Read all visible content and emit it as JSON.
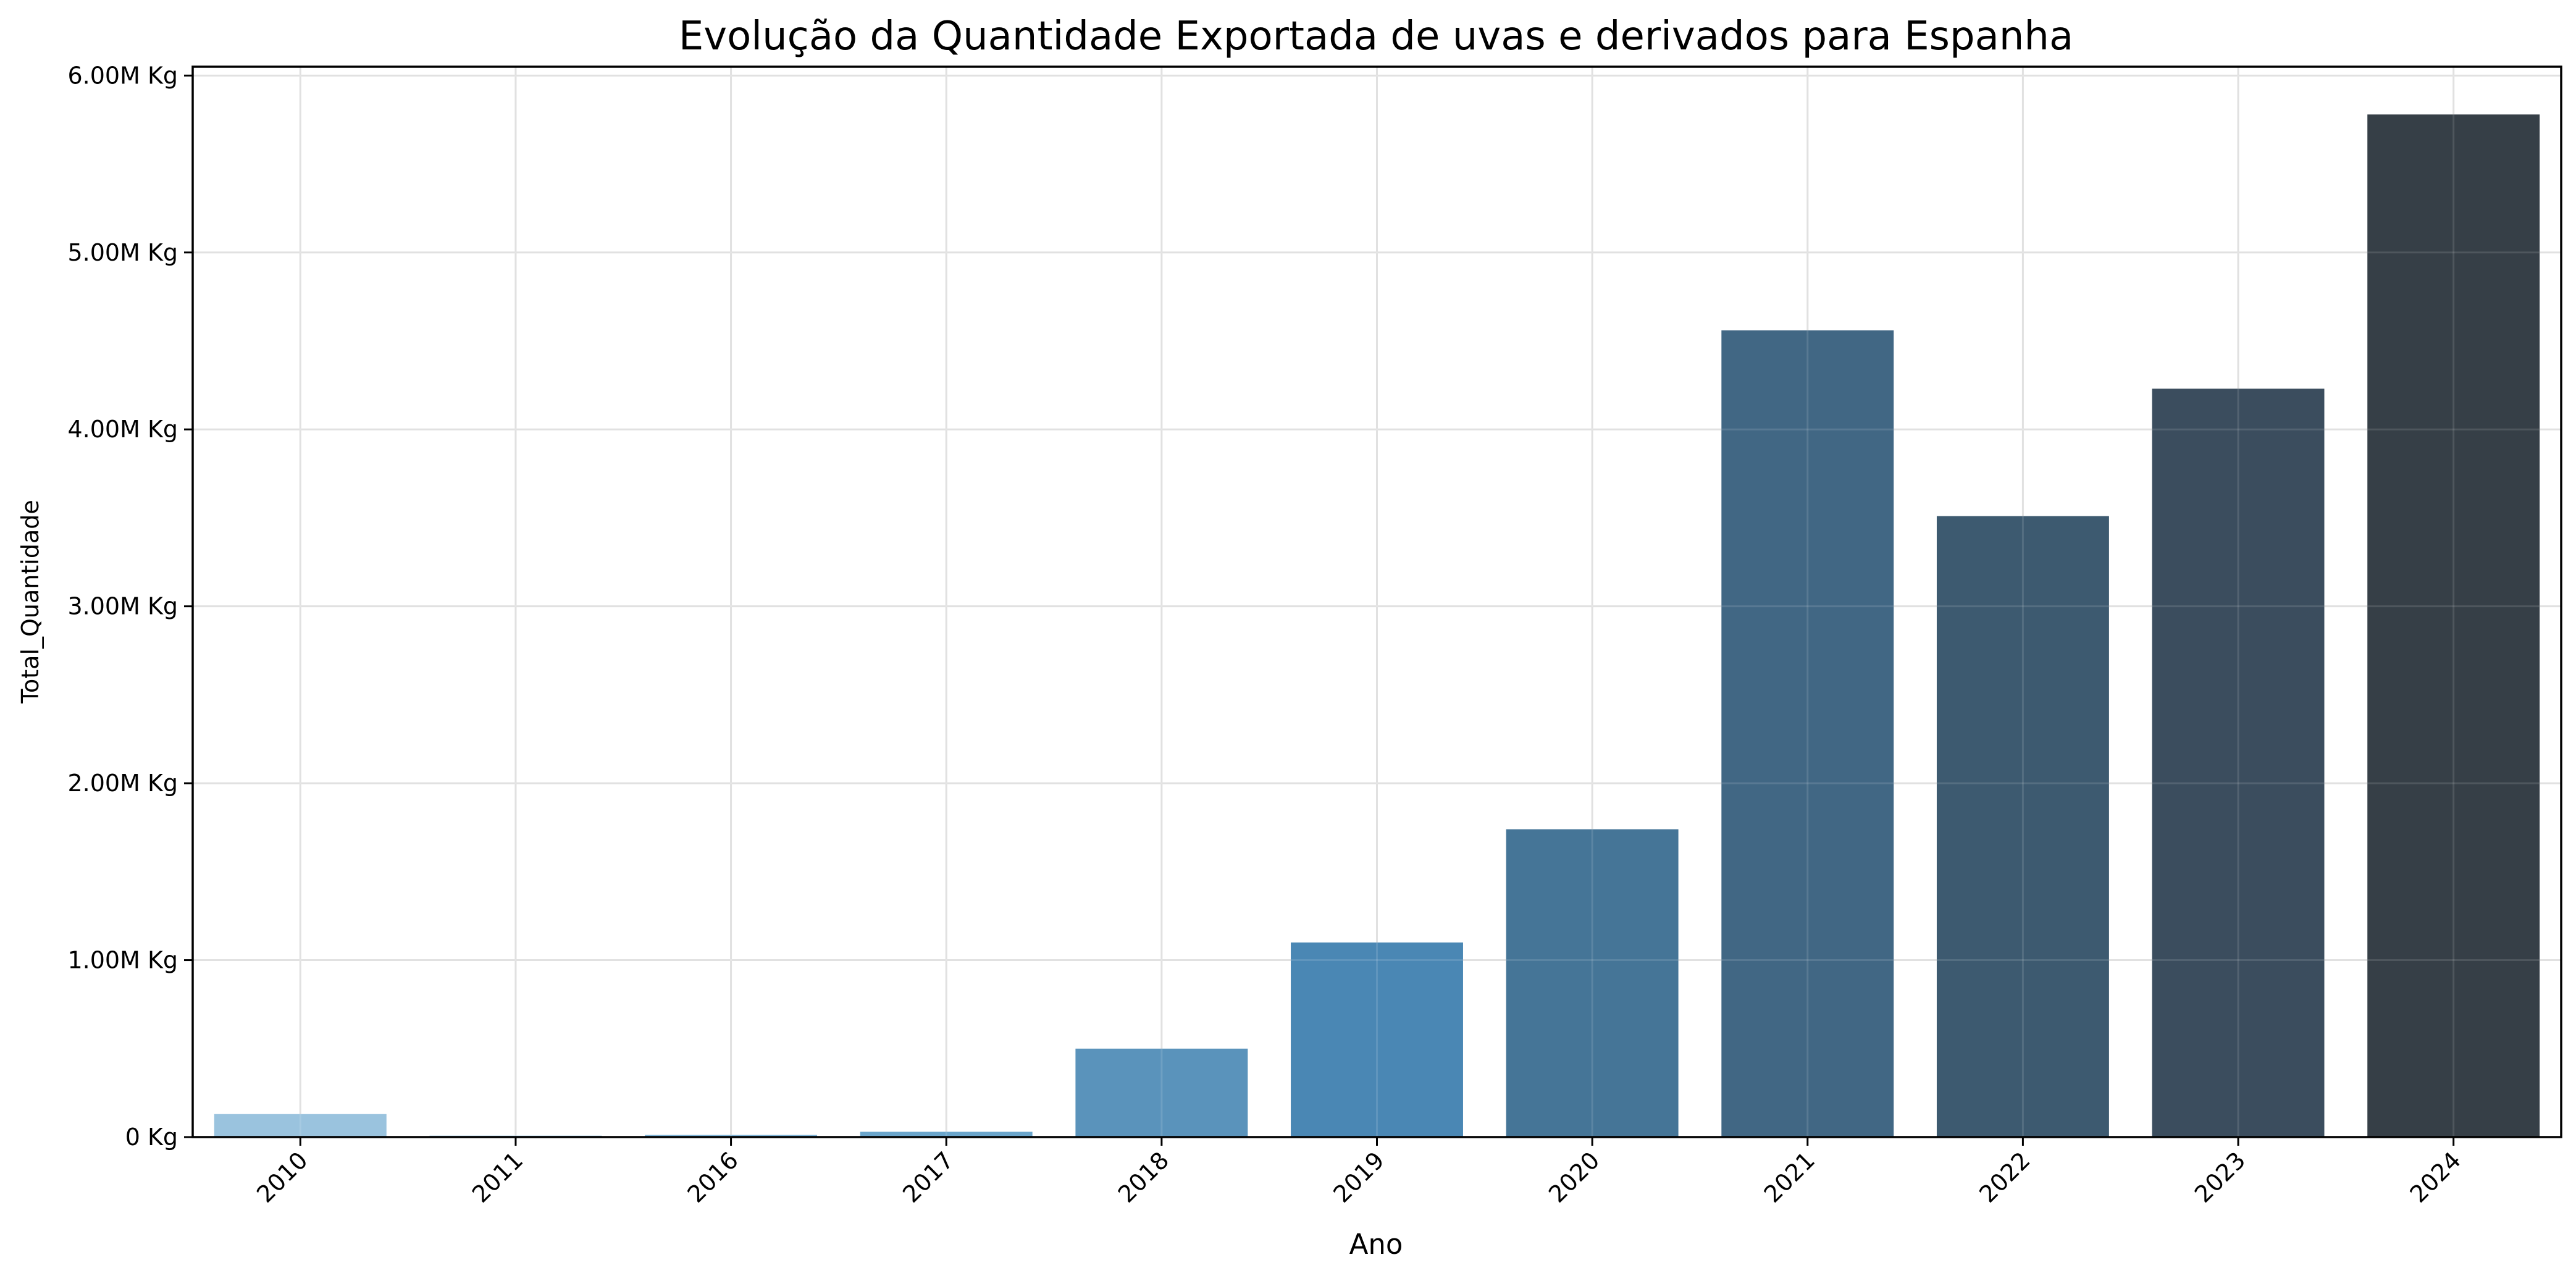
{
  "chart_data": {
    "type": "bar",
    "title": "Evolução da Quantidade Exportada de uvas e derivados para Espanha",
    "xlabel": "Ano",
    "ylabel": "Total_Quantidade",
    "categories": [
      "2010",
      "2011",
      "2016",
      "2017",
      "2018",
      "2019",
      "2020",
      "2021",
      "2022",
      "2023",
      "2024"
    ],
    "values": [
      130000,
      8000,
      12000,
      30000,
      500000,
      1100000,
      1740000,
      4560000,
      3510000,
      4230000,
      5780000
    ],
    "ylim": [
      0,
      6050000
    ],
    "yticks": [
      0,
      1000000,
      2000000,
      3000000,
      4000000,
      5000000,
      6000000
    ],
    "ytick_labels": [
      "0 Kg",
      "1.00M Kg",
      "2.00M Kg",
      "3.00M Kg",
      "4.00M Kg",
      "5.00M Kg",
      "6.00M Kg"
    ],
    "grid": true,
    "legend": false,
    "colors": [
      "#9ac3de",
      "#8fbcd9",
      "#7ab0d3",
      "#6aa5cb",
      "#5a93bb",
      "#4a87b4",
      "#457597",
      "#416784",
      "#3d5a70",
      "#3b4d5e",
      "#363f47"
    ]
  }
}
